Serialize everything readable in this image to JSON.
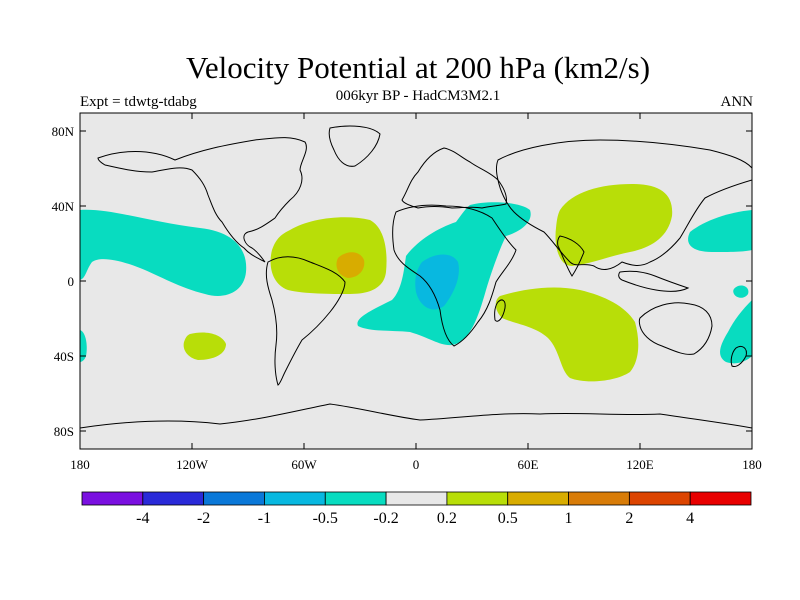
{
  "title": "Velocity Potential at 200 hPa (km2/s)",
  "subtitle": "006kyr BP - HadCM3M2.1",
  "experiment": "Expt = tdwtg-tdabg",
  "season": "ANN",
  "lat_ticks": [
    "80N",
    "40N",
    "0",
    "40S",
    "80S"
  ],
  "lon_ticks": [
    "180",
    "120W",
    "60W",
    "0",
    "60E",
    "120E",
    "180"
  ],
  "colorbar": {
    "colors": [
      "#7a10e0",
      "#2a2ad8",
      "#0a78d8",
      "#08b8e0",
      "#08dcc0",
      "#e8e8e8",
      "#b8de08",
      "#d8ac00",
      "#d87c08",
      "#dc4400",
      "#e80000"
    ],
    "labels": [
      "-4",
      "-2",
      "-1",
      "-0.5",
      "-0.2",
      "0.2",
      "0.5",
      "1",
      "2",
      "4"
    ]
  },
  "colors": {
    "neutral": "#e8e8e8",
    "neg_weak": "#08dcc0",
    "neg_mid": "#08b8e0",
    "pos_weak": "#b8de08",
    "pos_mid": "#d8ac00"
  }
}
